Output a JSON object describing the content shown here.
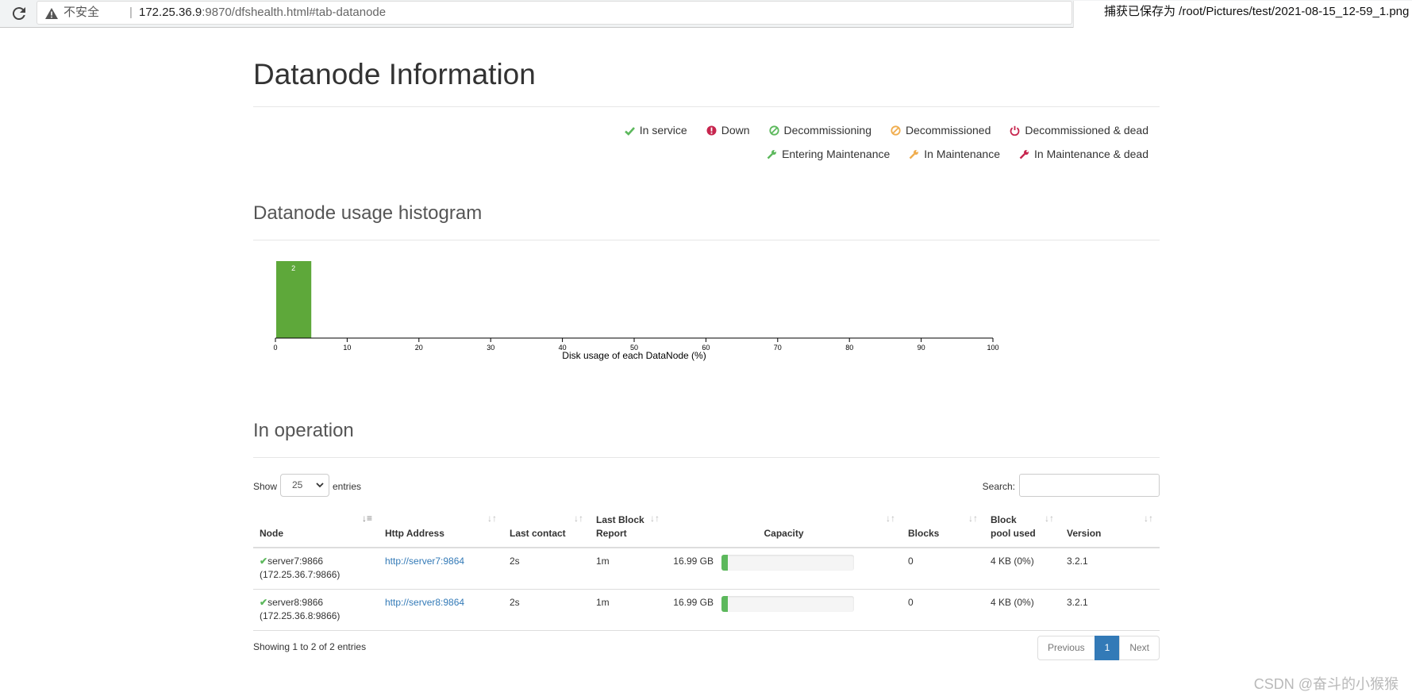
{
  "browser": {
    "security": "不安全",
    "url_host": "172.25.36.9",
    "url_rest": ":9870/dfshealth.html#tab-datanode",
    "notification": "捕获已保存为 /root/Pictures/test/2021-08-15_12-59_1.png"
  },
  "page": {
    "title": "Datanode Information"
  },
  "legend": {
    "row1": [
      {
        "label": "In service",
        "icon": "check-icon",
        "color": "#5cb85c"
      },
      {
        "label": "Down",
        "icon": "exclamation-circle-icon",
        "color": "#c7254e"
      },
      {
        "label": "Decommissioning",
        "icon": "ban-icon",
        "color": "#5cb85c"
      },
      {
        "label": "Decommissioned",
        "icon": "ban-icon",
        "color": "#f0ad4e"
      },
      {
        "label": "Decommissioned & dead",
        "icon": "power-icon",
        "color": "#c7254e"
      }
    ],
    "row2": [
      {
        "label": "Entering Maintenance",
        "icon": "wrench-icon",
        "color": "#5cb85c"
      },
      {
        "label": "In Maintenance",
        "icon": "wrench-icon",
        "color": "#f0ad4e"
      },
      {
        "label": "In Maintenance & dead",
        "icon": "wrench-icon",
        "color": "#c7254e"
      }
    ]
  },
  "histogram_section": {
    "title": "Datanode usage histogram"
  },
  "chart_data": {
    "type": "bar",
    "bins": [
      [
        0,
        5
      ]
    ],
    "values": [
      2
    ],
    "xlabel": "Disk usage of each DataNode (%)",
    "xlim": [
      0,
      100
    ],
    "xticks": [
      "0",
      "10",
      "20",
      "30",
      "40",
      "50",
      "60",
      "70",
      "80",
      "90",
      "100"
    ],
    "bar_color": "#5ea83a",
    "data_labels": [
      "2"
    ]
  },
  "operation": {
    "title": "In operation",
    "show_label": "Show",
    "page_length": "25",
    "entries_label": "entries",
    "search_label": "Search:",
    "search_value": "",
    "columns": [
      "Node",
      "Http Address",
      "Last contact",
      "Last Block Report",
      "Capacity",
      "Blocks",
      "Block pool used",
      "Version"
    ],
    "rows": [
      {
        "node": "server7:9866",
        "node_ip": "(172.25.36.7:9866)",
        "http": "http://server7:9864",
        "last_contact": "2s",
        "last_block_report": "1m",
        "capacity": "16.99 GB",
        "capacity_used_fraction": 0.05,
        "blocks": "0",
        "block_pool_used": "4 KB (0%)",
        "version": "3.2.1"
      },
      {
        "node": "server8:9866",
        "node_ip": "(172.25.36.8:9866)",
        "http": "http://server8:9864",
        "last_contact": "2s",
        "last_block_report": "1m",
        "capacity": "16.99 GB",
        "capacity_used_fraction": 0.05,
        "blocks": "0",
        "block_pool_used": "4 KB (0%)",
        "version": "3.2.1"
      }
    ],
    "info": "Showing 1 to 2 of 2 entries",
    "pager": {
      "previous": "Previous",
      "current": "1",
      "next": "Next"
    }
  },
  "watermark": "CSDN @奋斗的小猴猴"
}
